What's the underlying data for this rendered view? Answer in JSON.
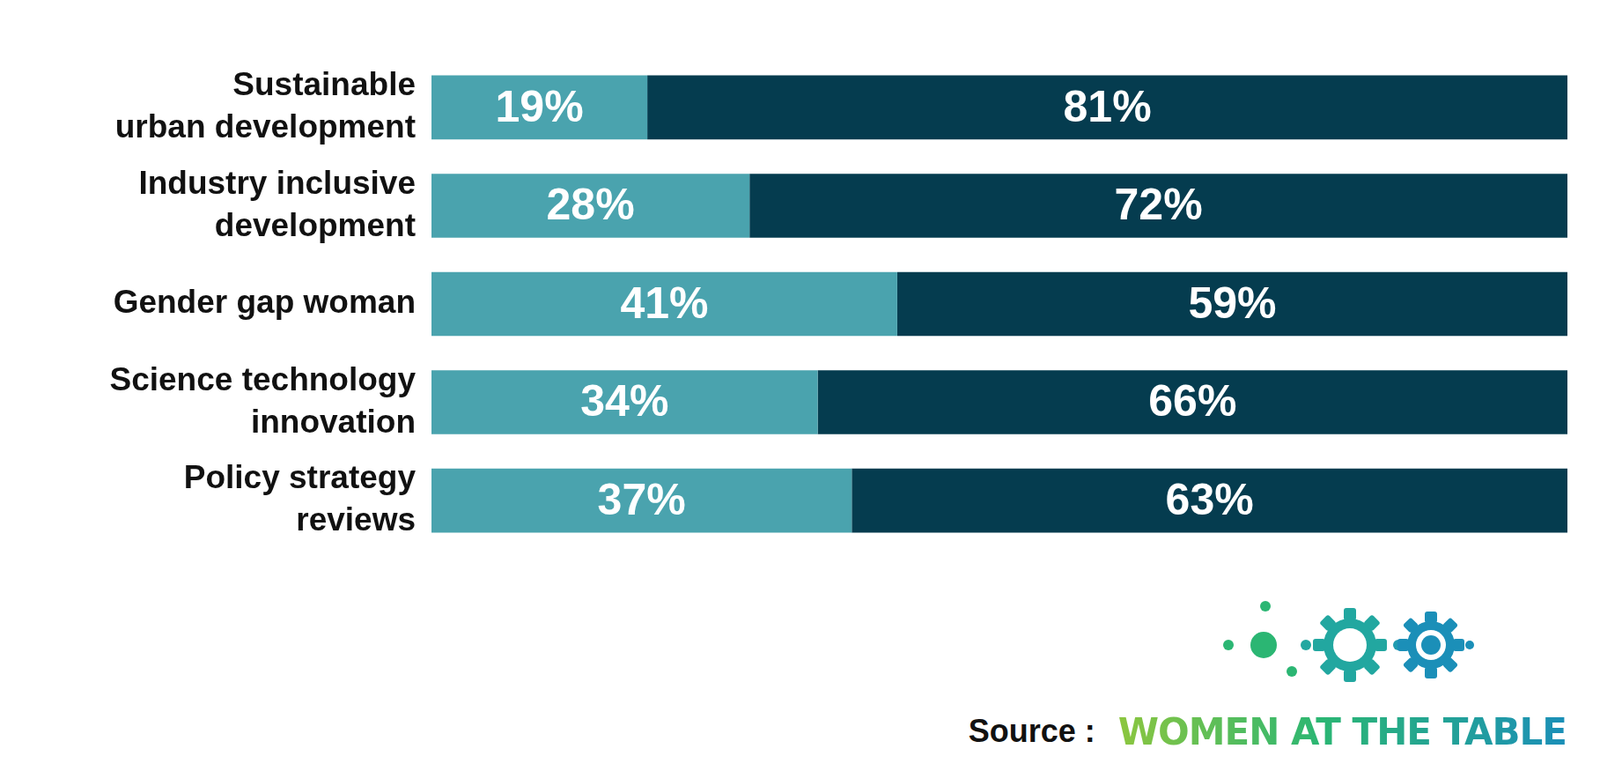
{
  "chart_data": {
    "type": "bar",
    "orientation": "horizontal",
    "stacked": true,
    "categories": [
      "Sustainable urban development",
      "Industry inclusive development",
      "Gender gap woman",
      "Science technology innovation",
      "Policy strategy reviews"
    ],
    "series": [
      {
        "color": "#4aa3ae",
        "values": [
          19,
          28,
          41,
          34,
          37
        ],
        "value_labels": [
          "19%",
          "28%",
          "41%",
          "34%",
          "37%"
        ]
      },
      {
        "color": "#053c4f",
        "values": [
          81,
          72,
          59,
          66,
          63
        ],
        "value_labels": [
          "81%",
          "72%",
          "59%",
          "66%",
          "63%"
        ]
      }
    ],
    "xlim": [
      0,
      100
    ],
    "data_labels": true,
    "tick_labels": "y",
    "grid": false,
    "source_label": "Source :",
    "source": "WOMEN AT THE TABLE"
  }
}
